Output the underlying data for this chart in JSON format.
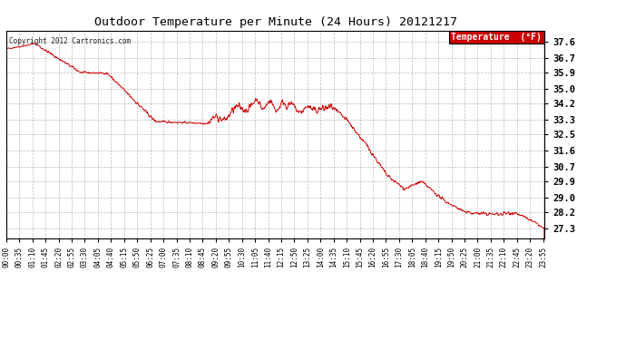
{
  "title": "Outdoor Temperature per Minute (24 Hours) 20121217",
  "copyright_text": "Copyright 2012 Cartronics.com",
  "legend_label": "Temperature  (°F)",
  "line_color": "#cc0000",
  "legend_bg": "#cc0000",
  "legend_text_color": "#ffffff",
  "background_color": "#ffffff",
  "grid_color": "#aaaaaa",
  "yticks": [
    27.3,
    28.2,
    29.0,
    29.9,
    30.7,
    31.6,
    32.5,
    33.3,
    34.2,
    35.0,
    35.9,
    36.7,
    37.6
  ],
  "ylim": [
    26.8,
    38.2
  ],
  "xlim_minutes": [
    0,
    1439
  ],
  "xtick_labels": [
    "00:00",
    "00:35",
    "01:10",
    "01:45",
    "02:20",
    "02:55",
    "03:30",
    "04:05",
    "04:40",
    "05:15",
    "05:50",
    "06:25",
    "07:00",
    "07:35",
    "08:10",
    "08:45",
    "09:20",
    "09:55",
    "10:30",
    "11:05",
    "11:40",
    "12:15",
    "12:50",
    "13:25",
    "14:00",
    "14:35",
    "15:10",
    "15:45",
    "16:20",
    "16:55",
    "17:30",
    "18:05",
    "18:40",
    "19:15",
    "19:50",
    "20:25",
    "21:00",
    "21:35",
    "22:10",
    "22:45",
    "23:20",
    "23:55"
  ]
}
